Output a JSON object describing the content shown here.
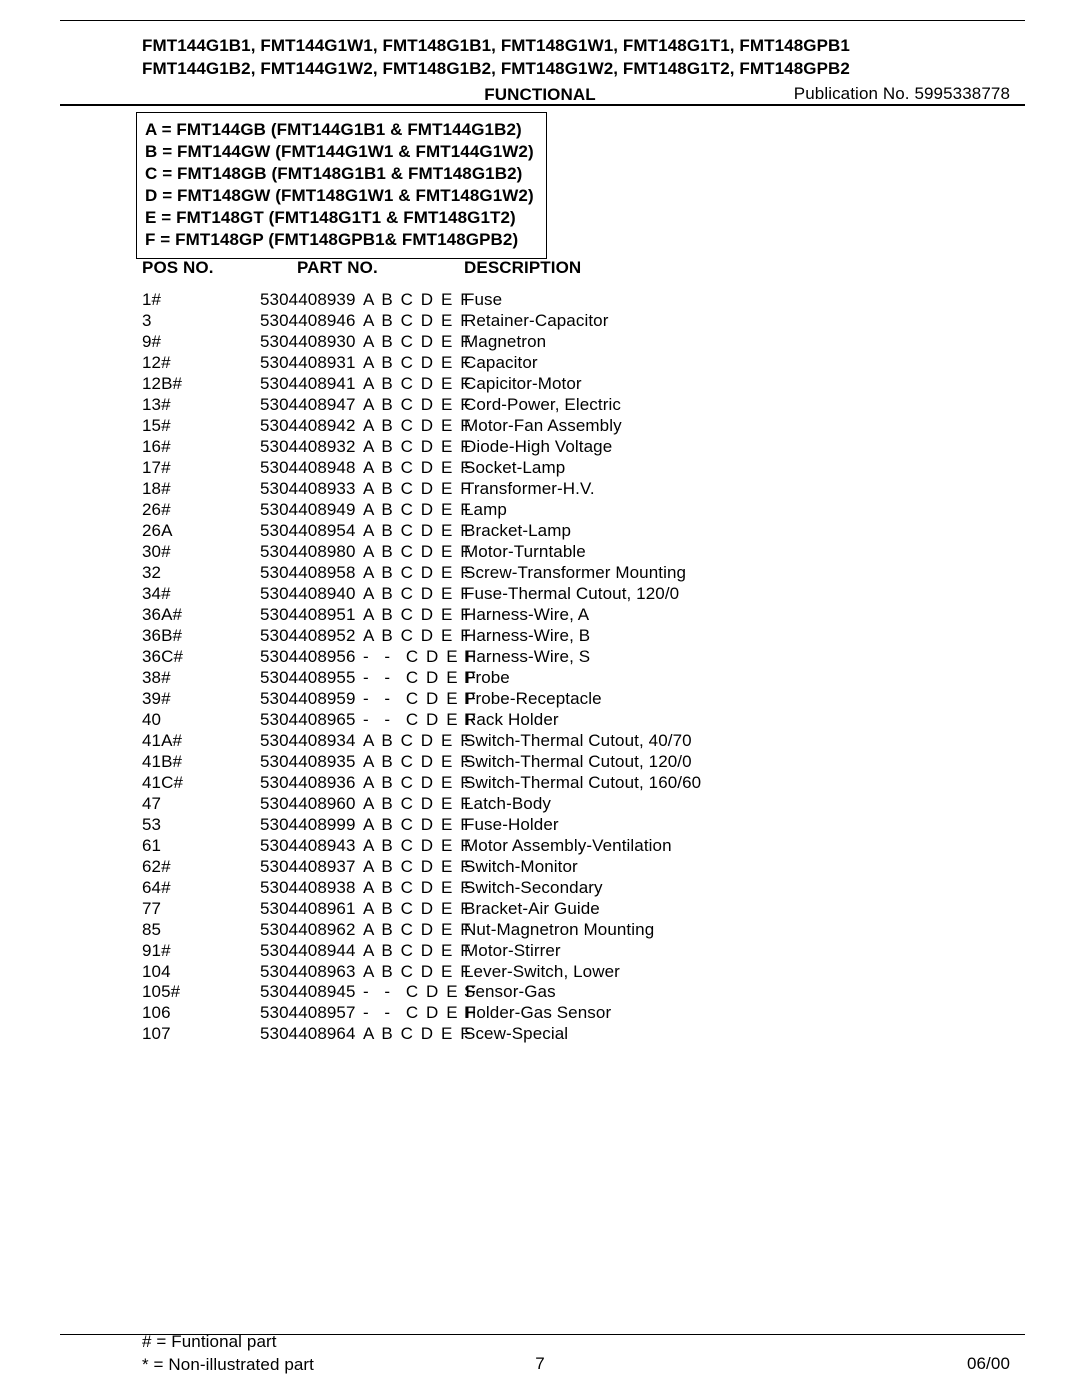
{
  "header": {
    "line1": "FMT144G1B1, FMT144G1W1, FMT148G1B1, FMT148G1W1, FMT148G1T1, FMT148GPB1",
    "line2": "FMT144G1B2, FMT144G1W2, FMT148G1B2, FMT148G1W2, FMT148G1T2, FMT148GPB2",
    "section_title": "FUNCTIONAL",
    "publication_label": "Publication No. 5995338778"
  },
  "legend": [
    "A = FMT144GB (FMT144G1B1 & FMT144G1B2)",
    "B = FMT144GW (FMT144G1W1 & FMT144G1W2)",
    "C = FMT148GB (FMT148G1B1 & FMT148G1B2)",
    "D = FMT148GW (FMT148G1W1 & FMT148G1W2)",
    "E = FMT148GT (FMT148G1T1 & FMT148G1T2)",
    "F = FMT148GP (FMT148GPB1& FMT148GPB2)"
  ],
  "column_headers": {
    "pos": "POS NO.",
    "part": "PART NO.",
    "desc": "DESCRIPTION"
  },
  "rows": [
    {
      "pos": "1#",
      "part": "5304408939",
      "mods": "A B C D E F",
      "desc": "Fuse"
    },
    {
      "pos": "3",
      "part": "5304408946",
      "mods": "A B C D E F",
      "desc": "Retainer-Capacitor"
    },
    {
      "pos": "9#",
      "part": "5304408930",
      "mods": "A B C D E F",
      "desc": "Magnetron"
    },
    {
      "pos": "12#",
      "part": "5304408931",
      "mods": "A B C D E F",
      "desc": "Capacitor"
    },
    {
      "pos": "12B#",
      "part": "5304408941",
      "mods": "A B C D E F",
      "desc": "Capicitor-Motor"
    },
    {
      "pos": "13#",
      "part": "5304408947",
      "mods": "A B C D E F",
      "desc": "Cord-Power, Electric"
    },
    {
      "pos": "15#",
      "part": "5304408942",
      "mods": "A B C D E F",
      "desc": "Motor-Fan Assembly"
    },
    {
      "pos": "16#",
      "part": "5304408932",
      "mods": "A B C D E F",
      "desc": "Diode-High Voltage"
    },
    {
      "pos": "17#",
      "part": "5304408948",
      "mods": "A B C D E F",
      "desc": "Socket-Lamp"
    },
    {
      "pos": "18#",
      "part": "5304408933",
      "mods": "A B C D E F",
      "desc": "Transformer-H.V."
    },
    {
      "pos": "26#",
      "part": "5304408949",
      "mods": "A B C D E F",
      "desc": "Lamp"
    },
    {
      "pos": "26A",
      "part": "5304408954",
      "mods": "A B C D E F",
      "desc": "Bracket-Lamp"
    },
    {
      "pos": "30#",
      "part": "5304408980",
      "mods": "A B C D E F",
      "desc": "Motor-Turntable"
    },
    {
      "pos": "32",
      "part": "5304408958",
      "mods": "A B C D E F",
      "desc": "Screw-Transformer Mounting"
    },
    {
      "pos": "34#",
      "part": "5304408940",
      "mods": "A B C D E F",
      "desc": "Fuse-Thermal Cutout, 120/0"
    },
    {
      "pos": "36A#",
      "part": "5304408951",
      "mods": "A B C D E F",
      "desc": "Harness-Wire, A"
    },
    {
      "pos": "36B#",
      "part": "5304408952",
      "mods": "A B C D E F",
      "desc": "Harness-Wire, B"
    },
    {
      "pos": "36C#",
      "part": "5304408956",
      "mods": "-  -  C D E F",
      "desc": "Harness-Wire, S"
    },
    {
      "pos": "38#",
      "part": "5304408955",
      "mods": "-  -  C D E F",
      "desc": "Probe"
    },
    {
      "pos": "39#",
      "part": "5304408959",
      "mods": "-  -  C D E F",
      "desc": "Probe-Receptacle"
    },
    {
      "pos": "40",
      "part": "5304408965",
      "mods": "-  -  C D E F",
      "desc": "Rack Holder"
    },
    {
      "pos": "41A#",
      "part": "5304408934",
      "mods": "A B C D E F",
      "desc": "Switch-Thermal Cutout, 40/70"
    },
    {
      "pos": "41B#",
      "part": "5304408935",
      "mods": "A B C D E F",
      "desc": "Switch-Thermal Cutout, 120/0"
    },
    {
      "pos": "41C#",
      "part": "5304408936",
      "mods": "A B C D E F",
      "desc": "Switch-Thermal Cutout, 160/60"
    },
    {
      "pos": "47",
      "part": "5304408960",
      "mods": "A B C D E F",
      "desc": "Latch-Body"
    },
    {
      "pos": "53",
      "part": "5304408999",
      "mods": "A B C D E F",
      "desc": "Fuse-Holder"
    },
    {
      "pos": "61",
      "part": "5304408943",
      "mods": "A B C D E F",
      "desc": "Motor Assembly-Ventilation"
    },
    {
      "pos": "62#",
      "part": "5304408937",
      "mods": "A B C D E F",
      "desc": "Switch-Monitor"
    },
    {
      "pos": "64#",
      "part": "5304408938",
      "mods": "A B C D E F",
      "desc": "Switch-Secondary"
    },
    {
      "pos": "77",
      "part": "5304408961",
      "mods": "A B C D E F",
      "desc": "Bracket-Air Guide"
    },
    {
      "pos": "85",
      "part": "5304408962",
      "mods": "A B C D E F",
      "desc": "Nut-Magnetron Mounting"
    },
    {
      "pos": "91#",
      "part": "5304408944",
      "mods": "A B C D E F",
      "desc": "Motor-Stirrer"
    },
    {
      "pos": "104",
      "part": "5304408963",
      "mods": "A B C D E F",
      "desc": "Lever-Switch, Lower"
    },
    {
      "pos": "105#",
      "part": "5304408945",
      "mods": "-  -  C D E F",
      "desc": "Sensor-Gas"
    },
    {
      "pos": "106",
      "part": "5304408957",
      "mods": "-  -  C D E F",
      "desc": "Holder-Gas Sensor"
    },
    {
      "pos": "107",
      "part": "5304408964",
      "mods": "A B C D E F",
      "desc": "Scew-Special"
    }
  ],
  "footer": {
    "note1": "# = Funtional part",
    "note2": "* = Non-illustrated part",
    "page_number": "7",
    "date": "06/00"
  }
}
